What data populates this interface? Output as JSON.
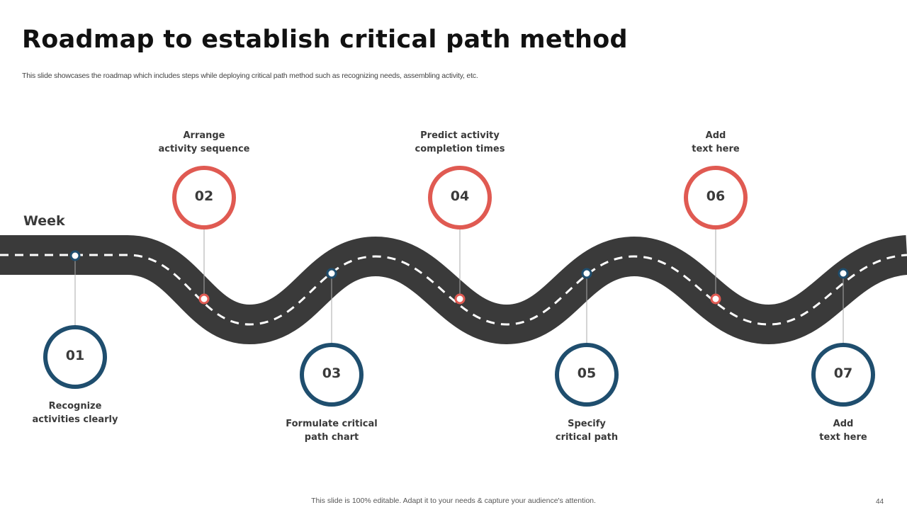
{
  "title": "Roadmap to establish critical path method",
  "subtitle": "This slide showcases the roadmap which includes steps while deploying critical path method such as recognizing needs, assembling activity, etc.",
  "week_label": "Week",
  "colors": {
    "red": "#e05a52",
    "blue": "#1f4e6e",
    "road": "#3a3a3a"
  },
  "steps": [
    {
      "number": "01",
      "line1": "Recognize",
      "line2": "activities clearly",
      "color": "blue"
    },
    {
      "number": "02",
      "line1": "Arrange",
      "line2": "activity sequence",
      "color": "red"
    },
    {
      "number": "03",
      "line1": "Formulate critical",
      "line2": "path chart",
      "color": "blue"
    },
    {
      "number": "04",
      "line1": "Predict activity",
      "line2": "completion times",
      "color": "red"
    },
    {
      "number": "05",
      "line1": "Specify",
      "line2": "critical path",
      "color": "blue"
    },
    {
      "number": "06",
      "line1": "Add",
      "line2": "text here",
      "color": "red"
    },
    {
      "number": "07",
      "line1": "Add",
      "line2": "text here",
      "color": "blue"
    }
  ],
  "footer": "This slide is 100% editable. Adapt it to your needs & capture your audience's attention.",
  "page_number": "44"
}
